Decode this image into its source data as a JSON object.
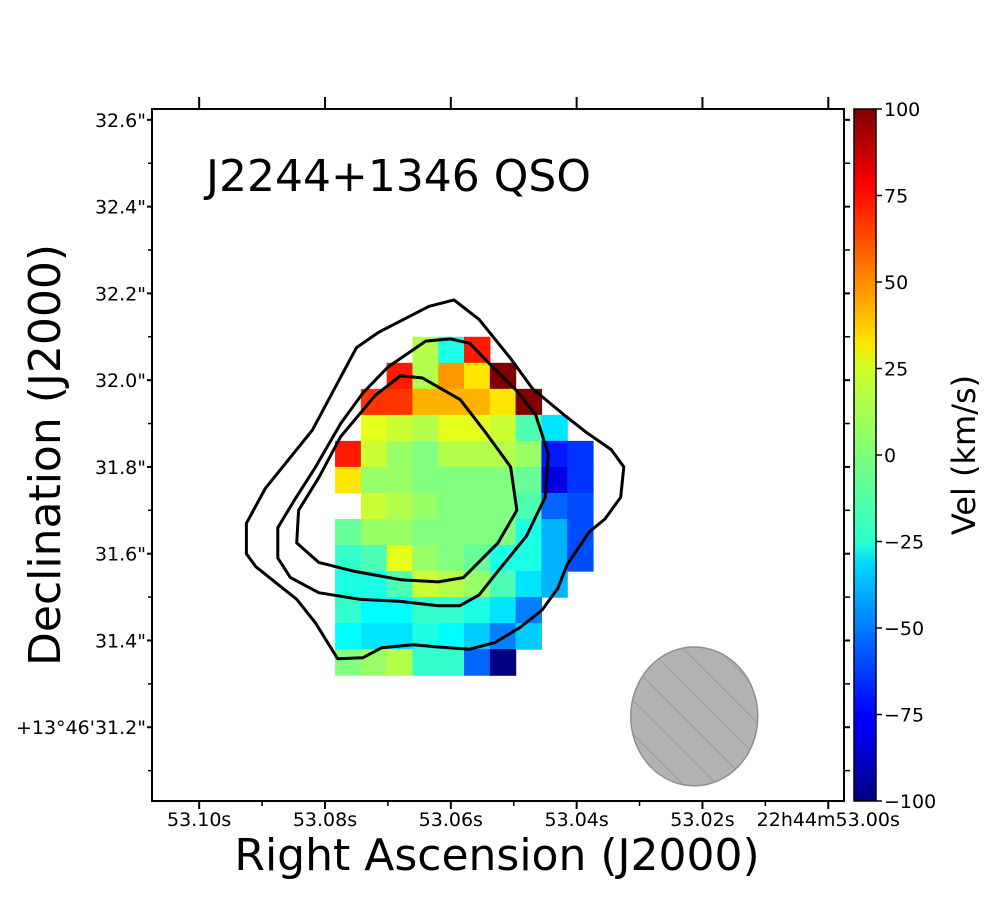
{
  "chart_data": {
    "type": "heatmap",
    "title": "J2244+1346 QSO",
    "xlabel": "Right Ascension (J2000)",
    "ylabel": "Declination (J2000)",
    "xlim": [
      53.1075,
      52.9975
    ],
    "ylim": [
      31.03,
      32.625
    ],
    "x_ticks": [
      {
        "value": 53.1,
        "label": "53.10s"
      },
      {
        "value": 53.08,
        "label": "53.08s"
      },
      {
        "value": 53.06,
        "label": "53.06s"
      },
      {
        "value": 53.04,
        "label": "53.04s"
      },
      {
        "value": 53.02,
        "label": "53.02s"
      },
      {
        "value": 53.0,
        "label": "22h44m53.00s"
      }
    ],
    "y_ticks": [
      {
        "value": 31.2,
        "label": "+13°46'31.2\""
      },
      {
        "value": 31.4,
        "label": "31.4\""
      },
      {
        "value": 31.6,
        "label": "31.6\""
      },
      {
        "value": 31.8,
        "label": "31.8\""
      },
      {
        "value": 32.0,
        "label": "32.0\""
      },
      {
        "value": 32.2,
        "label": "32.2\""
      },
      {
        "value": 32.4,
        "label": "32.4\""
      },
      {
        "value": 32.6,
        "label": "32.6\""
      }
    ],
    "colorbar": {
      "label": "Vel (km/s)",
      "colormap": "jet",
      "range": [
        -100,
        100
      ],
      "ticks": [
        100,
        75,
        50,
        25,
        0,
        -25,
        -50,
        -75,
        -100
      ],
      "tick_labels": [
        "100",
        "75",
        "50",
        "25",
        "0",
        "−25",
        "−50",
        "−75",
        "−100"
      ]
    },
    "grid": {
      "ra_start": 53.0825,
      "ra_step": -0.0041,
      "dec_start": 32.1,
      "dec_step": -0.06,
      "rows": [
        [
          null,
          null,
          null,
          null,
          10,
          -20,
          70,
          null,
          null,
          null,
          null
        ],
        [
          null,
          null,
          null,
          70,
          10,
          45,
          30,
          100,
          null,
          null,
          null
        ],
        [
          null,
          null,
          65,
          65,
          40,
          40,
          40,
          30,
          100,
          null,
          null
        ],
        [
          null,
          null,
          20,
          15,
          10,
          20,
          20,
          15,
          -10,
          -30,
          null
        ],
        [
          null,
          70,
          15,
          5,
          0,
          10,
          10,
          10,
          5,
          -70,
          -65
        ],
        [
          null,
          30,
          5,
          5,
          0,
          0,
          0,
          0,
          -5,
          -80,
          -65
        ],
        [
          null,
          null,
          15,
          10,
          5,
          0,
          0,
          0,
          -10,
          -55,
          -60
        ],
        [
          null,
          -5,
          5,
          5,
          0,
          0,
          0,
          0,
          -20,
          -40,
          -60
        ],
        [
          null,
          -15,
          -10,
          20,
          5,
          0,
          -5,
          -20,
          -20,
          -40,
          -60
        ],
        [
          null,
          -20,
          -20,
          -10,
          15,
          10,
          5,
          -10,
          -30,
          -40,
          null
        ],
        [
          null,
          -15,
          -25,
          -25,
          -15,
          -15,
          -20,
          -30,
          -50,
          null,
          null
        ],
        [
          null,
          -25,
          -30,
          -30,
          -20,
          -25,
          -35,
          -50,
          -35,
          null,
          null
        ],
        [
          null,
          0,
          5,
          10,
          -15,
          -15,
          -55,
          -100,
          null,
          null,
          null
        ]
      ]
    },
    "contours": [
      {
        "level": "outer",
        "points": [
          [
            53.078,
            31.358
          ],
          [
            53.074,
            31.36
          ],
          [
            53.071,
            31.383
          ],
          [
            53.066,
            31.39
          ],
          [
            53.062,
            31.385
          ],
          [
            53.057,
            31.38
          ],
          [
            53.053,
            31.395
          ],
          [
            53.049,
            31.43
          ],
          [
            53.0455,
            31.47
          ],
          [
            53.043,
            31.52
          ],
          [
            53.0415,
            31.575
          ],
          [
            53.038,
            31.65
          ],
          [
            53.0355,
            31.68
          ],
          [
            53.033,
            31.73
          ],
          [
            53.0325,
            31.8
          ],
          [
            53.0345,
            31.84
          ],
          [
            53.0385,
            31.88
          ],
          [
            53.042,
            31.92
          ],
          [
            53.047,
            31.98
          ],
          [
            53.0505,
            32.05
          ],
          [
            53.0555,
            32.14
          ],
          [
            53.0595,
            32.185
          ],
          [
            53.0635,
            32.17
          ],
          [
            53.0715,
            32.11
          ],
          [
            53.075,
            32.075
          ],
          [
            53.0785,
            31.98
          ],
          [
            53.082,
            31.885
          ],
          [
            53.0895,
            31.75
          ],
          [
            53.0925,
            31.67
          ],
          [
            53.0925,
            31.6
          ],
          [
            53.091,
            31.57
          ],
          [
            53.0845,
            31.495
          ],
          [
            53.0815,
            31.44
          ],
          [
            53.078,
            31.358
          ]
        ]
      },
      {
        "level": "middle",
        "points": [
          [
            53.0586,
            31.48
          ],
          [
            53.062,
            31.48
          ],
          [
            53.068,
            31.49
          ],
          [
            53.0745,
            31.495
          ],
          [
            53.081,
            31.51
          ],
          [
            53.0855,
            31.545
          ],
          [
            53.0875,
            31.59
          ],
          [
            53.0875,
            31.66
          ],
          [
            53.085,
            31.72
          ],
          [
            53.0815,
            31.8
          ],
          [
            53.0775,
            31.9
          ],
          [
            53.074,
            31.97
          ],
          [
            53.07,
            32.03
          ],
          [
            53.064,
            32.09
          ],
          [
            53.06,
            32.095
          ],
          [
            53.057,
            32.085
          ],
          [
            53.054,
            32.04
          ],
          [
            53.0495,
            31.975
          ],
          [
            53.0465,
            31.92
          ],
          [
            53.0445,
            31.83
          ],
          [
            53.045,
            31.73
          ],
          [
            53.048,
            31.64
          ],
          [
            53.0525,
            31.56
          ],
          [
            53.0555,
            31.505
          ],
          [
            53.0586,
            31.48
          ]
        ]
      },
      {
        "level": "inner",
        "points": [
          [
            53.058,
            31.545
          ],
          [
            53.062,
            31.535
          ],
          [
            53.068,
            31.54
          ],
          [
            53.0755,
            31.56
          ],
          [
            53.081,
            31.58
          ],
          [
            53.0845,
            31.625
          ],
          [
            53.0842,
            31.7
          ],
          [
            53.081,
            31.775
          ],
          [
            53.0775,
            31.87
          ],
          [
            53.072,
            31.965
          ],
          [
            53.068,
            32.01
          ],
          [
            53.0645,
            32.005
          ],
          [
            53.0585,
            31.955
          ],
          [
            53.0545,
            31.88
          ],
          [
            53.0505,
            31.8
          ],
          [
            53.0495,
            31.7
          ],
          [
            53.0525,
            31.625
          ],
          [
            53.058,
            31.545
          ]
        ]
      }
    ],
    "beam": {
      "ra_center": 53.0213,
      "dec_center": 31.225,
      "ra_width": 0.0202,
      "dec_height": 0.32,
      "hatch": true
    },
    "colors": {
      "contour": "#000000",
      "beam_fill": "#b3b3b3",
      "beam_edge": "#8f8f8f"
    }
  }
}
